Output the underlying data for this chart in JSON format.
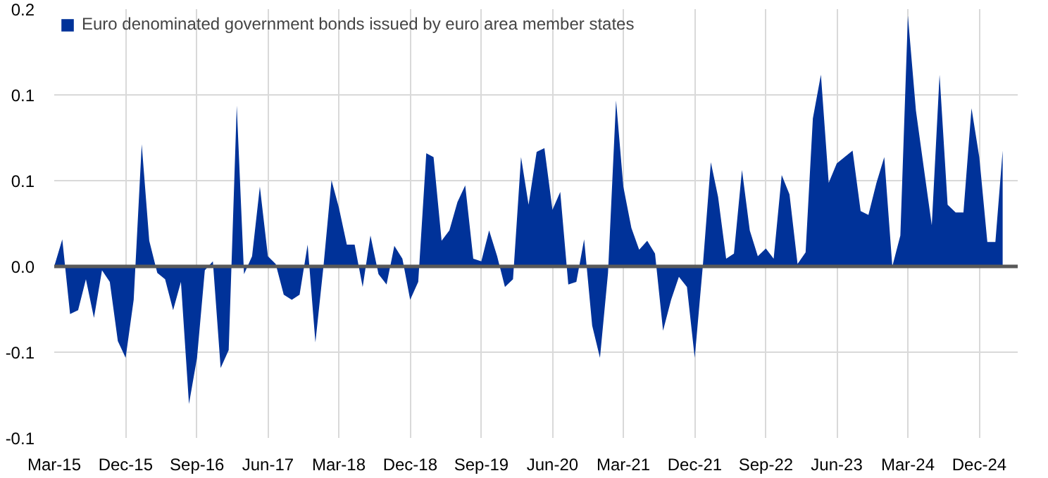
{
  "chart_data": {
    "type": "area",
    "x": [
      "2015-03",
      "2015-04",
      "2015-05",
      "2015-06",
      "2015-07",
      "2015-08",
      "2015-09",
      "2015-10",
      "2015-11",
      "2015-12",
      "2016-01",
      "2016-02",
      "2016-03",
      "2016-04",
      "2016-05",
      "2016-06",
      "2016-07",
      "2016-08",
      "2016-09",
      "2016-10",
      "2016-11",
      "2016-12",
      "2017-01",
      "2017-02",
      "2017-03",
      "2017-04",
      "2017-05",
      "2017-06",
      "2017-07",
      "2017-08",
      "2017-09",
      "2017-10",
      "2017-11",
      "2017-12",
      "2018-01",
      "2018-02",
      "2018-03",
      "2018-04",
      "2018-05",
      "2018-06",
      "2018-07",
      "2018-08",
      "2018-09",
      "2018-10",
      "2018-11",
      "2018-12",
      "2019-01",
      "2019-02",
      "2019-03",
      "2019-04",
      "2019-05",
      "2019-06",
      "2019-07",
      "2019-08",
      "2019-09",
      "2019-10",
      "2019-11",
      "2019-12",
      "2020-01",
      "2020-02",
      "2020-03",
      "2020-04",
      "2020-05",
      "2020-06",
      "2020-07",
      "2020-08",
      "2020-09",
      "2020-10",
      "2020-11",
      "2020-12",
      "2021-01",
      "2021-02",
      "2021-03",
      "2021-04",
      "2021-05",
      "2021-06",
      "2021-07",
      "2021-08",
      "2021-09",
      "2021-10",
      "2021-11",
      "2021-12",
      "2022-01",
      "2022-02",
      "2022-03",
      "2022-04",
      "2022-05",
      "2022-06",
      "2022-07",
      "2022-08",
      "2022-09",
      "2022-10",
      "2022-11",
      "2022-12",
      "2023-01",
      "2023-02",
      "2023-03",
      "2023-04",
      "2023-05",
      "2023-06",
      "2023-07",
      "2023-08",
      "2023-09",
      "2023-10",
      "2023-11",
      "2023-12",
      "2024-01",
      "2024-02",
      "2024-03",
      "2024-04",
      "2024-05",
      "2024-06",
      "2024-07",
      "2024-08",
      "2024-09",
      "2024-10",
      "2024-11",
      "2024-12",
      "2025-01",
      "2025-02",
      "2025-03"
    ],
    "series": [
      {
        "name": "Euro denominated government bonds issued by euro area member states",
        "color": "#003299",
        "values": [
          0.0,
          0.021,
          -0.037,
          -0.034,
          -0.01,
          -0.04,
          -0.003,
          -0.012,
          -0.058,
          -0.071,
          -0.026,
          0.095,
          0.02,
          -0.005,
          -0.01,
          -0.034,
          -0.012,
          -0.107,
          -0.071,
          -0.003,
          0.004,
          -0.079,
          -0.065,
          0.125,
          -0.006,
          0.008,
          0.062,
          0.008,
          0.002,
          -0.022,
          -0.026,
          -0.022,
          0.017,
          -0.059,
          0.0,
          0.067,
          0.046,
          0.017,
          0.017,
          -0.016,
          0.024,
          -0.006,
          -0.014,
          0.016,
          0.006,
          -0.026,
          -0.012,
          0.088,
          0.085,
          0.02,
          0.028,
          0.05,
          0.063,
          0.006,
          0.004,
          0.028,
          0.008,
          -0.016,
          -0.01,
          0.085,
          0.048,
          0.089,
          0.092,
          0.044,
          0.058,
          -0.014,
          -0.012,
          0.021,
          -0.046,
          -0.071,
          -0.005,
          0.129,
          0.062,
          0.03,
          0.013,
          0.02,
          0.01,
          -0.05,
          -0.026,
          -0.008,
          -0.016,
          -0.071,
          0.0,
          0.081,
          0.054,
          0.006,
          0.01,
          0.075,
          0.028,
          0.008,
          0.014,
          0.006,
          0.071,
          0.056,
          0.002,
          0.011,
          0.115,
          0.149,
          0.065,
          0.08,
          0.085,
          0.09,
          0.043,
          0.04,
          0.065,
          0.085,
          0.0,
          0.024,
          0.195,
          0.121,
          0.077,
          0.032,
          0.149,
          0.048,
          0.042,
          0.042,
          0.123,
          0.085,
          0.019,
          0.019,
          0.09
        ]
      }
    ],
    "xlim": [
      "2015-03",
      "2025-04-28"
    ],
    "xticks": [
      {
        "value": "2015-03",
        "label": "Mar-15"
      },
      {
        "value": "2015-12",
        "label": "Dec-15"
      },
      {
        "value": "2016-09",
        "label": "Sep-16"
      },
      {
        "value": "2017-06",
        "label": "Jun-17"
      },
      {
        "value": "2018-03",
        "label": "Mar-18"
      },
      {
        "value": "2018-12",
        "label": "Dec-18"
      },
      {
        "value": "2019-09",
        "label": "Sep-19"
      },
      {
        "value": "2020-06",
        "label": "Jun-20"
      },
      {
        "value": "2021-03",
        "label": "Mar-21"
      },
      {
        "value": "2021-12",
        "label": "Dec-21"
      },
      {
        "value": "2022-09",
        "label": "Sep-22"
      },
      {
        "value": "2023-06",
        "label": "Jun-23"
      },
      {
        "value": "2024-03",
        "label": "Mar-24"
      },
      {
        "value": "2024-12",
        "label": "Dec-24"
      }
    ],
    "ylim": [
      -0.1333,
      0.2
    ],
    "yticks": [
      0.2,
      {
        "value": 0.1333,
        "label": "0.1"
      },
      {
        "value": 0.0667,
        "label": "0.1"
      },
      {
        "value": 0,
        "label": "0.0"
      },
      {
        "value": -0.0667,
        "label": "-0.1"
      },
      {
        "value": -0.1333,
        "label": "-0.1"
      }
    ],
    "ref_lines": [
      {
        "axis": "y",
        "value": 0,
        "color": "#595959"
      }
    ],
    "grid": true,
    "legend": "top left"
  }
}
